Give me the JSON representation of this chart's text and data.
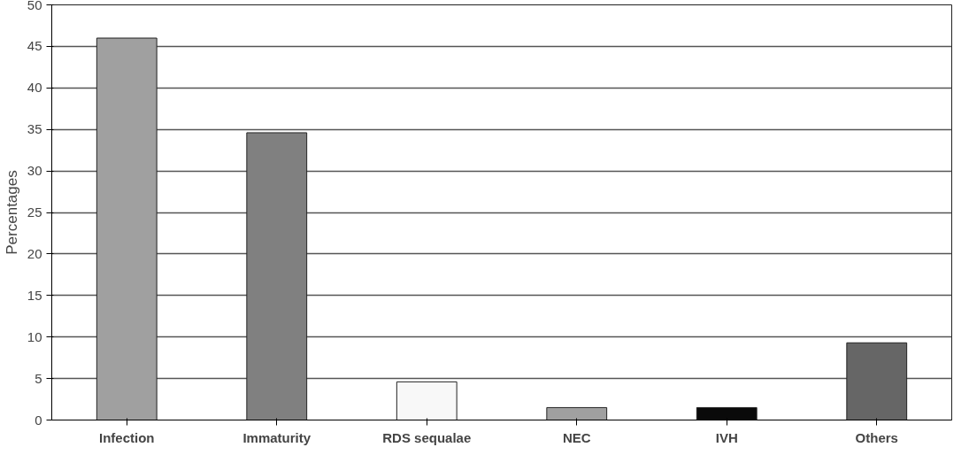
{
  "chart_data": {
    "type": "bar",
    "ylabel": "Percentages",
    "categories": [
      "Infection",
      "Immaturity",
      "RDS sequalae",
      "NEC",
      "IVH",
      "Others"
    ],
    "values": [
      46,
      34.6,
      4.6,
      1.5,
      1.5,
      9.3
    ],
    "colors": [
      "#a0a0a0",
      "#808080",
      "#f8f8f8",
      "#a0a0a0",
      "#0a0a0a",
      "#666666"
    ],
    "ylim": [
      0,
      50
    ],
    "yticks": [
      0,
      5,
      10,
      15,
      20,
      25,
      30,
      35,
      40,
      45,
      50
    ],
    "grid": "y"
  }
}
